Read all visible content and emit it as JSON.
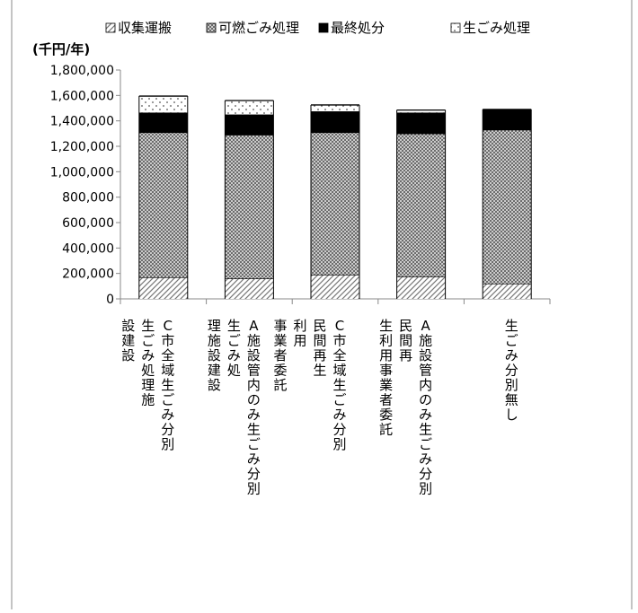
{
  "chart_data": {
    "type": "bar",
    "stacked": true,
    "ylabel": "(千円/年)",
    "ylim": [
      0,
      1800000
    ],
    "yticks": [
      "0",
      "200,000",
      "400,000",
      "600,000",
      "800,000",
      "1,000,000",
      "1,200,000",
      "1,400,000",
      "1,600,000",
      "1,800,000"
    ],
    "yticks_values": [
      0,
      200000,
      400000,
      600000,
      800000,
      1000000,
      1200000,
      1400000,
      1600000,
      1800000
    ],
    "grid": false,
    "legend_position": "top",
    "categories": [
      [
        "C市全域生ごみ分別",
        "生ごみ処理施",
        "設建設"
      ],
      [
        "A施設管内のみ生ごみ分別",
        "生ごみ処",
        "理施設建設"
      ],
      [
        "C市全域生ごみ分別",
        "民間再生",
        "利用",
        "事業者委託"
      ],
      [
        "A施設管内のみ生ごみ分別",
        "民間再",
        "生利用事業者委託"
      ],
      [
        "生ごみ分別無し"
      ]
    ],
    "series": [
      {
        "name": "収集運搬",
        "pattern": "diag",
        "values": [
          170000,
          160000,
          190000,
          175000,
          120000
        ]
      },
      {
        "name": "可燃ごみ処理",
        "pattern": "cross",
        "values": [
          1140000,
          1130000,
          1120000,
          1125000,
          1210000
        ]
      },
      {
        "name": "最終処分",
        "pattern": "solid",
        "values": [
          155000,
          160000,
          165000,
          165000,
          160000
        ]
      },
      {
        "name": "生ごみ処理",
        "pattern": "dots",
        "values": [
          130000,
          110000,
          50000,
          20000,
          0
        ]
      }
    ]
  }
}
